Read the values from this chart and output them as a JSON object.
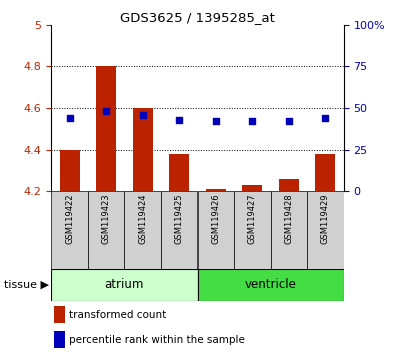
{
  "title": "GDS3625 / 1395285_at",
  "samples": [
    "GSM119422",
    "GSM119423",
    "GSM119424",
    "GSM119425",
    "GSM119426",
    "GSM119427",
    "GSM119428",
    "GSM119429"
  ],
  "transformed_count": [
    4.4,
    4.8,
    4.6,
    4.38,
    4.21,
    4.23,
    4.26,
    4.38
  ],
  "percentile_rank": [
    44,
    48,
    46,
    43,
    42,
    42,
    42,
    44
  ],
  "bar_bottom": 4.2,
  "ylim_left": [
    4.2,
    5.0
  ],
  "ylim_right": [
    0,
    100
  ],
  "yticks_left": [
    4.2,
    4.4,
    4.6,
    4.8,
    5.0
  ],
  "ytick_labels_left": [
    "4.2",
    "4.4",
    "4.6",
    "4.8",
    "5"
  ],
  "yticks_right": [
    0,
    25,
    50,
    75,
    100
  ],
  "ytick_labels_right": [
    "0",
    "25",
    "50",
    "75",
    "100%"
  ],
  "bar_color": "#bb2200",
  "dot_color": "#0000bb",
  "grid_color": "#000000",
  "tissue_groups": [
    {
      "label": "atrium",
      "start": 0,
      "end": 3,
      "color": "#ccffcc"
    },
    {
      "label": "ventricle",
      "start": 4,
      "end": 7,
      "color": "#44dd44"
    }
  ],
  "tissue_label": "tissue",
  "legend_bar_label": "transformed count",
  "legend_dot_label": "percentile rank within the sample",
  "sample_bg_color": "#d0d0d0",
  "bar_width": 0.55
}
